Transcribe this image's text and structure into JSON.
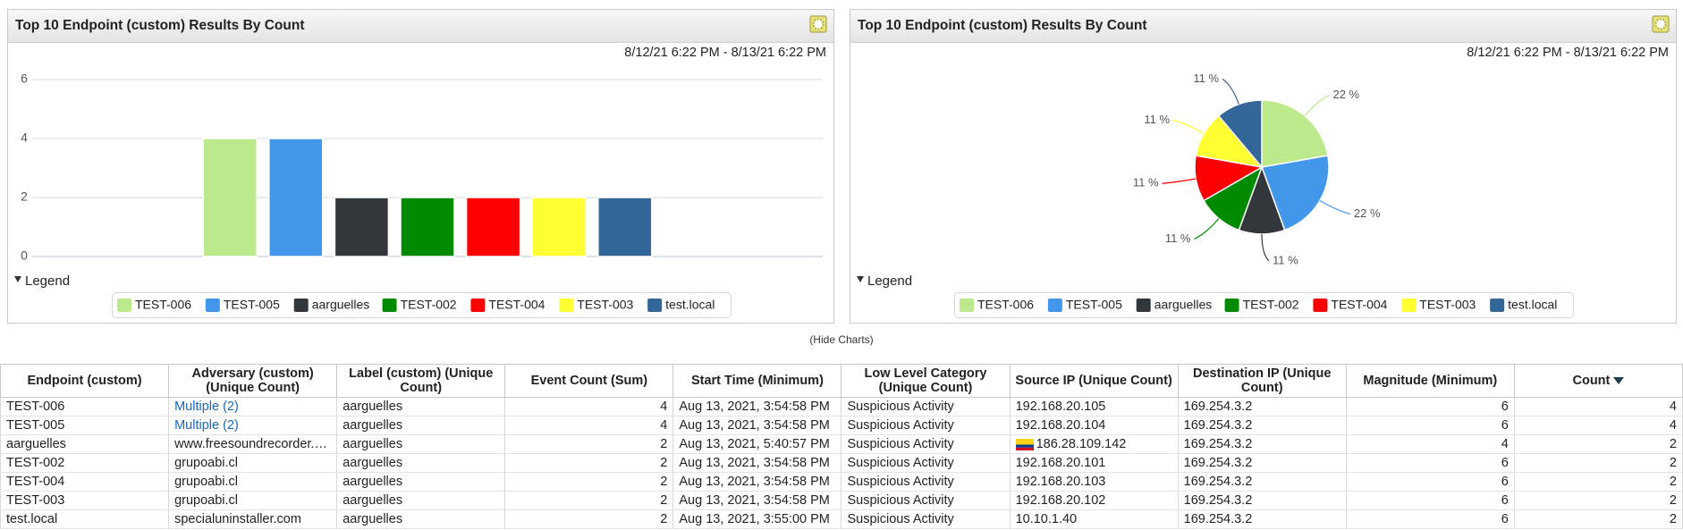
{
  "chart_data": [
    {
      "type": "bar",
      "title": "Top 10 Endpoint (custom) Results By Count",
      "subtitle": "8/12/21 6:22 PM - 8/13/21 6:22 PM",
      "categories": [
        "TEST-006",
        "TEST-005",
        "aarguelles",
        "TEST-002",
        "TEST-004",
        "TEST-003",
        "test.local"
      ],
      "values": [
        4,
        4,
        2,
        2,
        2,
        2,
        2
      ],
      "colors": [
        "#bbe98b",
        "#4297eb",
        "#33363b",
        "#008a00",
        "#ff0000",
        "#ffff33",
        "#336699"
      ],
      "ylim": [
        0,
        6
      ],
      "yticks": [
        0,
        2,
        4,
        6
      ],
      "grid": true,
      "legend_title": "Legend"
    },
    {
      "type": "pie",
      "title": "Top 10 Endpoint (custom) Results By Count",
      "subtitle": "8/12/21 6:22 PM - 8/13/21 6:22 PM",
      "categories": [
        "TEST-006",
        "TEST-005",
        "aarguelles",
        "TEST-002",
        "TEST-004",
        "TEST-003",
        "test.local"
      ],
      "values": [
        22,
        22,
        11,
        11,
        11,
        11,
        11
      ],
      "value_labels": [
        "22 %",
        "22 %",
        "11 %",
        "11 %",
        "11 %",
        "11 %",
        "11 %"
      ],
      "colors": [
        "#bbe98b",
        "#4297eb",
        "#33363b",
        "#008a00",
        "#ff0000",
        "#ffff33",
        "#336699"
      ],
      "legend_title": "Legend"
    }
  ],
  "hide_charts": "(Hide Charts)",
  "table": {
    "columns": [
      "Endpoint (custom)",
      "Adversary (custom) (Unique Count)",
      "Label (custom) (Unique Count)",
      "Event Count (Sum)",
      "Start Time (Minimum)",
      "Low Level Category (Unique Count)",
      "Source IP (Unique Count)",
      "Destination IP (Unique Count)",
      "Magnitude (Minimum)",
      "Count"
    ],
    "rows": [
      [
        "TEST-006",
        "Multiple (2)",
        "aarguelles",
        4,
        "Aug 13, 2021, 3:54:58 PM",
        "Suspicious Activity",
        "192.168.20.105",
        "169.254.3.2",
        6,
        4
      ],
      [
        "TEST-005",
        "Multiple (2)",
        "aarguelles",
        4,
        "Aug 13, 2021, 3:54:58 PM",
        "Suspicious Activity",
        "192.168.20.104",
        "169.254.3.2",
        6,
        4
      ],
      [
        "aarguelles",
        "www.freesoundrecorder.…",
        "aarguelles",
        2,
        "Aug 13, 2021, 5:40:57 PM",
        "Suspicious Activity",
        "186.28.109.142",
        "169.254.3.2",
        4,
        2
      ],
      [
        "TEST-002",
        "grupoabi.cl",
        "aarguelles",
        2,
        "Aug 13, 2021, 3:54:58 PM",
        "Suspicious Activity",
        "192.168.20.101",
        "169.254.3.2",
        6,
        2
      ],
      [
        "TEST-004",
        "grupoabi.cl",
        "aarguelles",
        2,
        "Aug 13, 2021, 3:54:58 PM",
        "Suspicious Activity",
        "192.168.20.103",
        "169.254.3.2",
        6,
        2
      ],
      [
        "TEST-003",
        "grupoabi.cl",
        "aarguelles",
        2,
        "Aug 13, 2021, 3:54:58 PM",
        "Suspicious Activity",
        "192.168.20.102",
        "169.254.3.2",
        6,
        2
      ],
      [
        "test.local",
        "specialuninstaller.com",
        "aarguelles",
        2,
        "Aug 13, 2021, 3:55:00 PM",
        "Suspicious Activity",
        "10.10.1.40",
        "169.254.3.2",
        6,
        2
      ]
    ]
  }
}
